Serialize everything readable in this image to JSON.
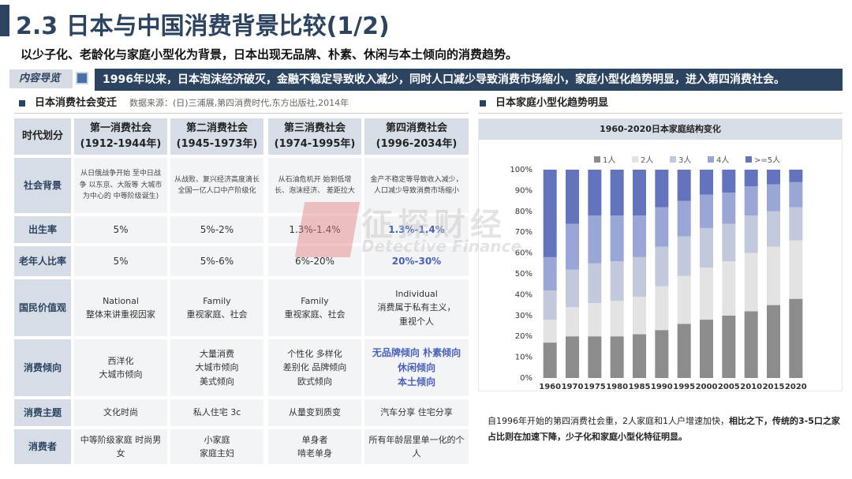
{
  "header": {
    "title": "2.3 日本与中国消费背景比较(1/2)",
    "subtitle": "以少子化、老龄化与家庭小型化为背景，日本出现无品牌、朴素、休闲与本土倾向的消费趋势。"
  },
  "guide": {
    "label": "内容导览",
    "text": "1996年以来，日本泡沫经济破灭，金融不稳定导致收入减少，同时人口减少导致消费市场缩小，家庭小型化趋势明显，进入第四消费社会。"
  },
  "left_section": {
    "title": "日本消费社会变迁",
    "source": "数据来源：(日)三浦展,第四消费时代,东方出版社,2014年"
  },
  "right_section": {
    "title": "日本家庭小型化趋势明显"
  },
  "table": {
    "corner": "时代划分",
    "columns": [
      {
        "name": "第一消费社会",
        "period": "(1912-1944年)"
      },
      {
        "name": "第二消费社会",
        "period": "(1945-1973年)"
      },
      {
        "name": "第三消费社会",
        "period": "(1974-1995年)"
      },
      {
        "name": "第四消费社会",
        "period": "(1996-2034年)"
      }
    ],
    "rows": [
      {
        "label": "社会背景",
        "cells": [
          "从日俄战争开始 至中日战争 以东京、大阪等 大城市为中心的 中等阶级诞生)",
          "从战败、复兴经济高度滴长全国一亿人口中产阶级化",
          "从石油危机开 始到低增长、泡沫经济、 差距拉大",
          "金产不稳定等导致收入减少，人口减少导致消费市场缩小"
        ]
      },
      {
        "label": "出生率",
        "cells": [
          "5%",
          "5%-2%",
          "1.3%-1.4%",
          "1.3%-1.4%"
        ]
      },
      {
        "label": "老年人比率",
        "cells": [
          "5%",
          "5%-6%",
          "6%-20%",
          "20%-30%"
        ]
      },
      {
        "label": "国民价值观",
        "cells": [
          "National\n整体来讲重视因家",
          "Family\n重视家庭、社会",
          "Family\n重视家庭、社会",
          "Individual\n消费属于私有主义，\n重视个人"
        ]
      },
      {
        "label": "消费倾向",
        "cells": [
          "西洋化\n大城市倾向",
          "大量消费\n大城市倾向\n美式倾向",
          "个性化 多样化\n差别化 品牌倾向\n欧式倾向",
          "无品牌倾向 朴素倾向\n休闲倾向\n本土倾向"
        ]
      },
      {
        "label": "消费主题",
        "cells": [
          "文化时尚",
          "私人住宅 3c",
          "从量变到质变",
          "汽车分享 住宅分享"
        ]
      },
      {
        "label": "消费者",
        "cells": [
          "中等阶级家庭 时尚男女",
          "小家庭\n家庭主妇",
          "单身者\n啃老单身",
          "所有年龄层里单一化的个人"
        ]
      }
    ]
  },
  "chart_data": {
    "type": "bar",
    "stacked": true,
    "title": "1960-2020日本家庭结构变化",
    "categories": [
      "1960",
      "1970",
      "1975",
      "1980",
      "1985",
      "1990",
      "1995",
      "2000",
      "2005",
      "2010",
      "2015",
      "2020"
    ],
    "series": [
      {
        "name": "1人",
        "color": "#8c8c8c",
        "values": [
          17,
          20,
          20,
          20,
          21,
          23,
          26,
          28,
          30,
          32,
          35,
          38
        ]
      },
      {
        "name": "2人",
        "color": "#e3e3e3",
        "values": [
          11,
          14,
          16,
          17,
          18,
          21,
          23,
          25,
          26,
          28,
          28,
          28
        ]
      },
      {
        "name": "3人",
        "color": "#c3c9dc",
        "values": [
          14,
          18,
          19,
          19,
          19,
          19,
          19,
          19,
          18,
          18,
          17,
          16
        ]
      },
      {
        "name": "4人",
        "color": "#9aa6d6",
        "values": [
          16,
          22,
          23,
          22,
          20,
          19,
          17,
          16,
          15,
          14,
          13,
          12
        ]
      },
      {
        "name": ">=5人",
        "color": "#6473bd",
        "values": [
          42,
          26,
          22,
          22,
          22,
          18,
          15,
          12,
          11,
          8,
          7,
          6
        ]
      }
    ],
    "ylim": [
      0,
      100
    ],
    "yticks": [
      "0%",
      "10%",
      "20%",
      "30%",
      "40%",
      "50%",
      "60%",
      "70%",
      "80%",
      "90%",
      "100%"
    ],
    "legend": "top"
  },
  "note": {
    "normal": "自1996年开始的第四消费社会重，2人家庭和1人户增速加快，",
    "bold": "相比之下，传统的3-5口之家占比则在加速下降，少子化和家庭小型化特征明显。"
  },
  "watermark": {
    "text": "征探财经",
    "sub": "Detective Finance"
  }
}
